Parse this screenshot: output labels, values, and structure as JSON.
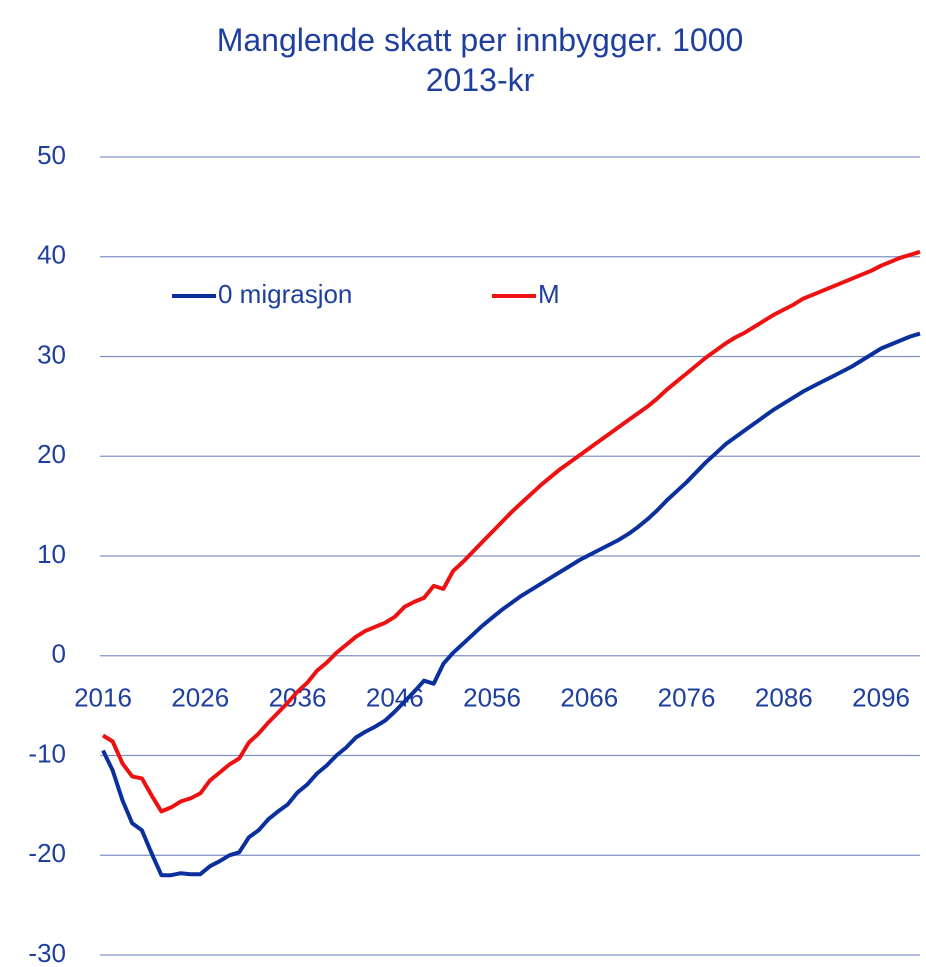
{
  "chart_data": {
    "type": "line",
    "title": "Manglende skatt per innbygger. 1000 2013-kr",
    "x": [
      2016,
      2017,
      2018,
      2019,
      2020,
      2021,
      2022,
      2023,
      2024,
      2025,
      2026,
      2027,
      2028,
      2029,
      2030,
      2031,
      2032,
      2033,
      2034,
      2035,
      2036,
      2037,
      2038,
      2039,
      2040,
      2041,
      2042,
      2043,
      2044,
      2045,
      2046,
      2047,
      2048,
      2049,
      2050,
      2051,
      2052,
      2053,
      2054,
      2055,
      2056,
      2057,
      2058,
      2059,
      2060,
      2061,
      2062,
      2063,
      2064,
      2065,
      2066,
      2067,
      2068,
      2069,
      2070,
      2071,
      2072,
      2073,
      2074,
      2075,
      2076,
      2077,
      2078,
      2079,
      2080,
      2081,
      2082,
      2083,
      2084,
      2085,
      2086,
      2087,
      2088,
      2089,
      2090,
      2091,
      2092,
      2093,
      2094,
      2095,
      2096,
      2097,
      2098,
      2099,
      2100
    ],
    "series": [
      {
        "name": "0 migrasjon",
        "color": "#0b2f9c",
        "values": [
          -9.5,
          -11.5,
          -14.5,
          -16.8,
          -17.5,
          -19.8,
          -22,
          -22,
          -21.8,
          -21.9,
          -21.9,
          -21.1,
          -20.6,
          -20,
          -19.7,
          -18.2,
          -17.5,
          -16.4,
          -15.6,
          -14.9,
          -13.7,
          -12.9,
          -11.8,
          -11,
          -10,
          -9.2,
          -8.2,
          -7.6,
          -7.1,
          -6.5,
          -5.6,
          -4.6,
          -3.6,
          -2.5,
          -2.8,
          -0.8,
          0.3,
          1.2,
          2.1,
          3.0,
          3.8,
          4.6,
          5.3,
          6,
          6.6,
          7.2,
          7.8,
          8.4,
          9.0,
          9.6,
          10.1,
          10.6,
          11.1,
          11.6,
          12.2,
          12.9,
          13.7,
          14.6,
          15.6,
          16.5,
          17.4,
          18.4,
          19.4,
          20.3,
          21.2,
          21.9,
          22.6,
          23.3,
          24.0,
          24.7,
          25.3,
          25.9,
          26.5,
          27.0,
          27.5,
          28.0,
          28.5,
          29.0,
          29.6,
          30.2,
          30.8,
          31.2,
          31.6,
          32.0,
          32.3
        ]
      },
      {
        "name": "M",
        "color": "#ee1111",
        "values": [
          -8,
          -8.6,
          -10.8,
          -12.1,
          -12.3,
          -14,
          -15.6,
          -15.2,
          -14.6,
          -14.3,
          -13.8,
          -12.5,
          -11.7,
          -10.9,
          -10.3,
          -8.7,
          -7.8,
          -6.7,
          -5.7,
          -4.7,
          -3.6,
          -2.7,
          -1.5,
          -0.7,
          0.3,
          1.1,
          1.9,
          2.5,
          2.9,
          3.3,
          3.9,
          4.9,
          5.4,
          5.8,
          7,
          6.7,
          8.5,
          9.4,
          10.4,
          11.4,
          12.4,
          13.4,
          14.4,
          15.3,
          16.2,
          17.1,
          17.9,
          18.7,
          19.4,
          20.1,
          20.8,
          21.5,
          22.2,
          22.9,
          23.6,
          24.3,
          25.0,
          25.8,
          26.7,
          27.5,
          28.3,
          29.1,
          29.9,
          30.6,
          31.3,
          31.9,
          32.4,
          33.0,
          33.6,
          34.2,
          34.7,
          35.2,
          35.8,
          36.2,
          36.6,
          37.0,
          37.4,
          37.8,
          38.2,
          38.6,
          39.1,
          39.5,
          39.9,
          40.2,
          40.5
        ]
      }
    ],
    "xlim": [
      2016,
      2100
    ],
    "xticks": [
      2016,
      2026,
      2036,
      2046,
      2056,
      2066,
      2076,
      2086,
      2096
    ],
    "ylim": [
      -30,
      50
    ],
    "yticks": [
      -30,
      -20,
      -10,
      0,
      10,
      20,
      30,
      40,
      50
    ],
    "grid": true,
    "legend": "top-left"
  }
}
